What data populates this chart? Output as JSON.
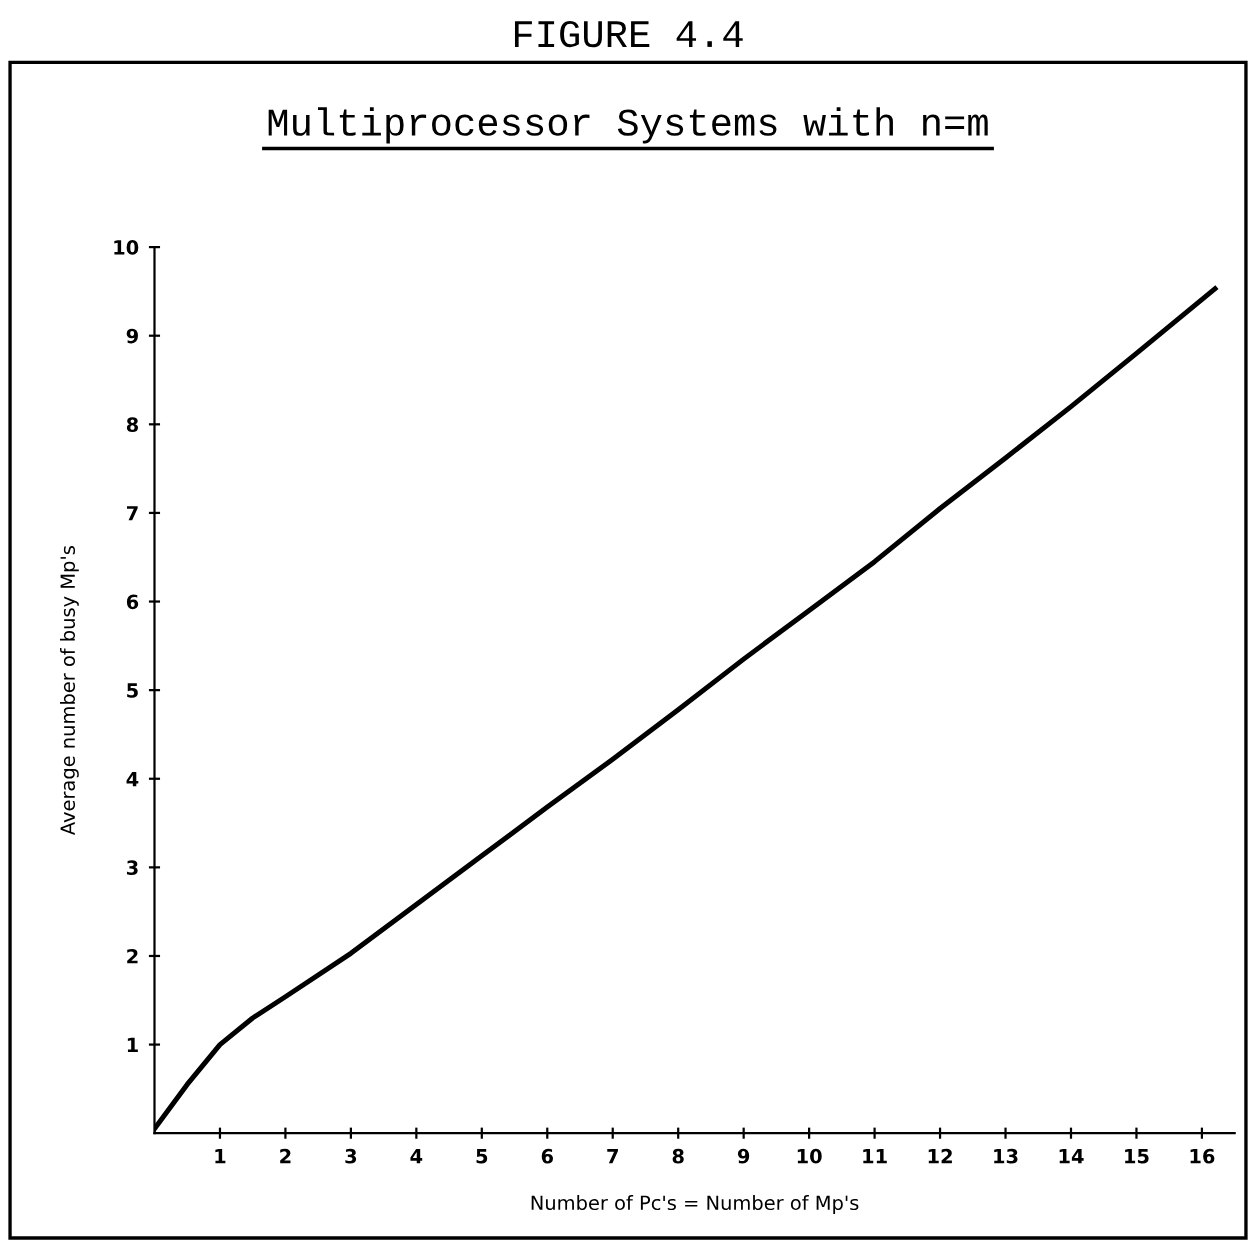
{
  "chart_data": {
    "type": "line",
    "title": "FIGURE 4.4",
    "subtitle": "Multiprocessor Systems with n=m",
    "xlabel": "Number of Pc's = Number of Mp's",
    "ylabel": "Average number of busy Mp's",
    "x": [
      0,
      0.5,
      1,
      1.5,
      2,
      3,
      4,
      5,
      6,
      7,
      8,
      9,
      10,
      11,
      12,
      13,
      14,
      15,
      16.2
    ],
    "series": [
      {
        "color": "#000000",
        "values": [
          0.05,
          0.55,
          1.0,
          1.3,
          1.54,
          2.03,
          2.58,
          3.13,
          3.68,
          4.22,
          4.78,
          5.35,
          5.9,
          6.45,
          7.05,
          7.62,
          8.2,
          8.8,
          9.53
        ]
      }
    ],
    "xlim": [
      0,
      16.5
    ],
    "ylim": [
      0,
      10
    ],
    "xticks": [
      1,
      2,
      3,
      4,
      5,
      6,
      7,
      8,
      9,
      10,
      11,
      12,
      13,
      14,
      15,
      16
    ],
    "yticks": [
      1,
      2,
      3,
      4,
      5,
      6,
      7,
      8,
      9,
      10
    ],
    "marker": "none",
    "line_style": "solid"
  }
}
